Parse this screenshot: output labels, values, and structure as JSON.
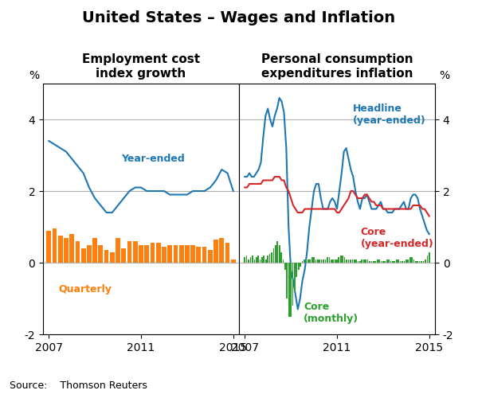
{
  "title": "United States – Wages and Inflation",
  "annotations": [
    "Source:    Thomson Reuters"
  ],
  "chart_data": [
    {
      "type": "bar",
      "title": "Employment cost\nindex growth",
      "ylabel": "%",
      "xlim": [
        2006.75,
        2015.25
      ],
      "xticks": [
        2007,
        2011,
        2015
      ],
      "ylim": [
        -2,
        5
      ],
      "yticks": [
        -2,
        0,
        2,
        4
      ],
      "grid": true,
      "series": [
        {
          "name": "Year-ended",
          "type": "line",
          "color": "#1f77b4",
          "x": [
            2007.0,
            2007.25,
            2007.5,
            2007.75,
            2008.0,
            2008.25,
            2008.5,
            2008.75,
            2009.0,
            2009.25,
            2009.5,
            2009.75,
            2010.0,
            2010.25,
            2010.5,
            2010.75,
            2011.0,
            2011.25,
            2011.5,
            2011.75,
            2012.0,
            2012.25,
            2012.5,
            2012.75,
            2013.0,
            2013.25,
            2013.5,
            2013.75,
            2014.0,
            2014.25,
            2014.5,
            2014.75,
            2015.0
          ],
          "values": [
            3.4,
            3.3,
            3.2,
            3.1,
            2.9,
            2.7,
            2.5,
            2.1,
            1.8,
            1.6,
            1.4,
            1.4,
            1.6,
            1.8,
            2.0,
            2.1,
            2.1,
            2.0,
            2.0,
            2.0,
            2.0,
            1.9,
            1.9,
            1.9,
            1.9,
            2.0,
            2.0,
            2.0,
            2.1,
            2.3,
            2.6,
            2.5,
            2.0
          ]
        },
        {
          "name": "Quarterly",
          "type": "bar",
          "color": "#ff7f0e",
          "x": [
            2007.0,
            2007.25,
            2007.5,
            2007.75,
            2008.0,
            2008.25,
            2008.5,
            2008.75,
            2009.0,
            2009.25,
            2009.5,
            2009.75,
            2010.0,
            2010.25,
            2010.5,
            2010.75,
            2011.0,
            2011.25,
            2011.5,
            2011.75,
            2012.0,
            2012.25,
            2012.5,
            2012.75,
            2013.0,
            2013.25,
            2013.5,
            2013.75,
            2014.0,
            2014.25,
            2014.5,
            2014.75,
            2015.0
          ],
          "values": [
            0.9,
            0.95,
            0.75,
            0.7,
            0.8,
            0.6,
            0.4,
            0.5,
            0.7,
            0.5,
            0.35,
            0.3,
            0.7,
            0.4,
            0.6,
            0.6,
            0.5,
            0.5,
            0.55,
            0.55,
            0.45,
            0.5,
            0.5,
            0.5,
            0.5,
            0.5,
            0.45,
            0.45,
            0.35,
            0.65,
            0.7,
            0.55,
            0.1
          ]
        }
      ]
    },
    {
      "type": "bar",
      "title": "Personal consumption\nexpenditures inflation",
      "ylabel": "%",
      "xlim": [
        2006.75,
        2015.25
      ],
      "xticks": [
        2007,
        2011,
        2015
      ],
      "ylim": [
        -2,
        5
      ],
      "yticks": [
        -2,
        0,
        2,
        4
      ],
      "grid": true,
      "series": [
        {
          "name": "Headline\n(year-ended)",
          "type": "line",
          "color": "#1f77b4",
          "x": [
            2007.0,
            2007.1,
            2007.2,
            2007.3,
            2007.4,
            2007.5,
            2007.6,
            2007.7,
            2007.8,
            2007.9,
            2008.0,
            2008.1,
            2008.2,
            2008.3,
            2008.4,
            2008.5,
            2008.6,
            2008.7,
            2008.8,
            2008.9,
            2009.0,
            2009.1,
            2009.2,
            2009.3,
            2009.4,
            2009.5,
            2009.6,
            2009.7,
            2009.8,
            2009.9,
            2010.0,
            2010.1,
            2010.2,
            2010.3,
            2010.4,
            2010.5,
            2010.6,
            2010.7,
            2010.8,
            2010.9,
            2011.0,
            2011.1,
            2011.2,
            2011.3,
            2011.4,
            2011.5,
            2011.6,
            2011.7,
            2011.8,
            2011.9,
            2012.0,
            2012.1,
            2012.2,
            2012.3,
            2012.4,
            2012.5,
            2012.6,
            2012.7,
            2012.8,
            2012.9,
            2013.0,
            2013.1,
            2013.2,
            2013.3,
            2013.4,
            2013.5,
            2013.6,
            2013.7,
            2013.8,
            2013.9,
            2014.0,
            2014.1,
            2014.2,
            2014.3,
            2014.4,
            2014.5,
            2014.6,
            2014.7,
            2014.8,
            2014.9,
            2015.0
          ],
          "values": [
            2.4,
            2.4,
            2.5,
            2.4,
            2.4,
            2.5,
            2.6,
            2.8,
            3.5,
            4.1,
            4.3,
            4.0,
            3.8,
            4.1,
            4.3,
            4.6,
            4.5,
            4.2,
            3.2,
            1.0,
            -0.2,
            -0.5,
            -0.9,
            -1.3,
            -1.0,
            -0.5,
            -0.2,
            0.3,
            1.0,
            1.5,
            2.0,
            2.2,
            2.2,
            1.8,
            1.5,
            1.5,
            1.5,
            1.7,
            1.8,
            1.7,
            1.5,
            2.0,
            2.5,
            3.1,
            3.2,
            2.9,
            2.6,
            2.4,
            2.0,
            1.7,
            1.5,
            1.8,
            1.8,
            1.9,
            1.7,
            1.5,
            1.5,
            1.5,
            1.6,
            1.7,
            1.5,
            1.5,
            1.4,
            1.4,
            1.4,
            1.5,
            1.5,
            1.5,
            1.6,
            1.7,
            1.5,
            1.5,
            1.8,
            1.9,
            1.9,
            1.8,
            1.5,
            1.3,
            1.1,
            0.9,
            0.8
          ]
        },
        {
          "name": "Core\n(year-ended)",
          "type": "line",
          "color": "#d62728",
          "x": [
            2007.0,
            2007.1,
            2007.2,
            2007.3,
            2007.4,
            2007.5,
            2007.6,
            2007.7,
            2007.8,
            2007.9,
            2008.0,
            2008.1,
            2008.2,
            2008.3,
            2008.4,
            2008.5,
            2008.6,
            2008.7,
            2008.8,
            2008.9,
            2009.0,
            2009.1,
            2009.2,
            2009.3,
            2009.4,
            2009.5,
            2009.6,
            2009.7,
            2009.8,
            2009.9,
            2010.0,
            2010.1,
            2010.2,
            2010.3,
            2010.4,
            2010.5,
            2010.6,
            2010.7,
            2010.8,
            2010.9,
            2011.0,
            2011.1,
            2011.2,
            2011.3,
            2011.4,
            2011.5,
            2011.6,
            2011.7,
            2011.8,
            2011.9,
            2012.0,
            2012.1,
            2012.2,
            2012.3,
            2012.4,
            2012.5,
            2012.6,
            2012.7,
            2012.8,
            2012.9,
            2013.0,
            2013.1,
            2013.2,
            2013.3,
            2013.4,
            2013.5,
            2013.6,
            2013.7,
            2013.8,
            2013.9,
            2014.0,
            2014.1,
            2014.2,
            2014.3,
            2014.4,
            2014.5,
            2014.6,
            2014.7,
            2014.8,
            2014.9,
            2015.0
          ],
          "values": [
            2.1,
            2.1,
            2.2,
            2.2,
            2.2,
            2.2,
            2.2,
            2.2,
            2.3,
            2.3,
            2.3,
            2.3,
            2.3,
            2.4,
            2.4,
            2.4,
            2.3,
            2.3,
            2.1,
            2.0,
            1.8,
            1.6,
            1.5,
            1.4,
            1.4,
            1.4,
            1.5,
            1.5,
            1.5,
            1.5,
            1.5,
            1.5,
            1.5,
            1.5,
            1.5,
            1.5,
            1.5,
            1.5,
            1.5,
            1.5,
            1.4,
            1.4,
            1.5,
            1.6,
            1.7,
            1.8,
            2.0,
            2.0,
            1.9,
            1.8,
            1.8,
            1.8,
            1.9,
            1.9,
            1.8,
            1.7,
            1.7,
            1.6,
            1.6,
            1.6,
            1.5,
            1.5,
            1.5,
            1.5,
            1.5,
            1.5,
            1.5,
            1.5,
            1.5,
            1.5,
            1.5,
            1.5,
            1.5,
            1.6,
            1.6,
            1.6,
            1.6,
            1.5,
            1.5,
            1.4,
            1.3
          ]
        },
        {
          "name": "Core\n(monthly)",
          "type": "bar",
          "color": "#2ca02c",
          "x": [
            2007.0,
            2007.08,
            2007.17,
            2007.25,
            2007.33,
            2007.42,
            2007.5,
            2007.58,
            2007.67,
            2007.75,
            2007.83,
            2007.92,
            2008.0,
            2008.08,
            2008.17,
            2008.25,
            2008.33,
            2008.42,
            2008.5,
            2008.58,
            2008.67,
            2008.75,
            2008.83,
            2008.92,
            2009.0,
            2009.08,
            2009.17,
            2009.25,
            2009.33,
            2009.42,
            2009.5,
            2009.58,
            2009.67,
            2009.75,
            2009.83,
            2009.92,
            2010.0,
            2010.08,
            2010.17,
            2010.25,
            2010.33,
            2010.42,
            2010.5,
            2010.58,
            2010.67,
            2010.75,
            2010.83,
            2010.92,
            2011.0,
            2011.08,
            2011.17,
            2011.25,
            2011.33,
            2011.42,
            2011.5,
            2011.58,
            2011.67,
            2011.75,
            2011.83,
            2011.92,
            2012.0,
            2012.08,
            2012.17,
            2012.25,
            2012.33,
            2012.42,
            2012.5,
            2012.58,
            2012.67,
            2012.75,
            2012.83,
            2012.92,
            2013.0,
            2013.08,
            2013.17,
            2013.25,
            2013.33,
            2013.42,
            2013.5,
            2013.58,
            2013.67,
            2013.75,
            2013.83,
            2013.92,
            2014.0,
            2014.08,
            2014.17,
            2014.25,
            2014.33,
            2014.42,
            2014.5,
            2014.58,
            2014.67,
            2014.75,
            2014.83,
            2014.92,
            2015.0
          ],
          "values": [
            0.15,
            0.2,
            0.1,
            0.15,
            0.2,
            0.1,
            0.15,
            0.2,
            0.1,
            0.15,
            0.2,
            0.1,
            0.2,
            0.25,
            0.3,
            0.4,
            0.5,
            0.6,
            0.5,
            0.3,
            0.1,
            -0.2,
            -1.0,
            -1.5,
            -1.5,
            -1.2,
            -0.8,
            -0.4,
            -0.2,
            -0.1,
            0.05,
            0.1,
            0.1,
            0.1,
            0.1,
            0.15,
            0.15,
            0.1,
            0.1,
            0.1,
            0.1,
            0.1,
            0.1,
            0.15,
            0.15,
            0.1,
            0.1,
            0.1,
            0.1,
            0.15,
            0.2,
            0.2,
            0.15,
            0.1,
            0.1,
            0.1,
            0.1,
            0.1,
            0.1,
            0.05,
            0.05,
            0.1,
            0.1,
            0.1,
            0.1,
            0.05,
            0.05,
            0.05,
            0.05,
            0.1,
            0.1,
            0.05,
            0.05,
            0.05,
            0.1,
            0.1,
            0.05,
            0.05,
            0.05,
            0.1,
            0.1,
            0.05,
            0.05,
            0.05,
            0.1,
            0.1,
            0.15,
            0.15,
            0.1,
            0.05,
            0.05,
            0.05,
            0.05,
            0.05,
            0.1,
            0.2,
            0.3
          ]
        }
      ]
    }
  ]
}
